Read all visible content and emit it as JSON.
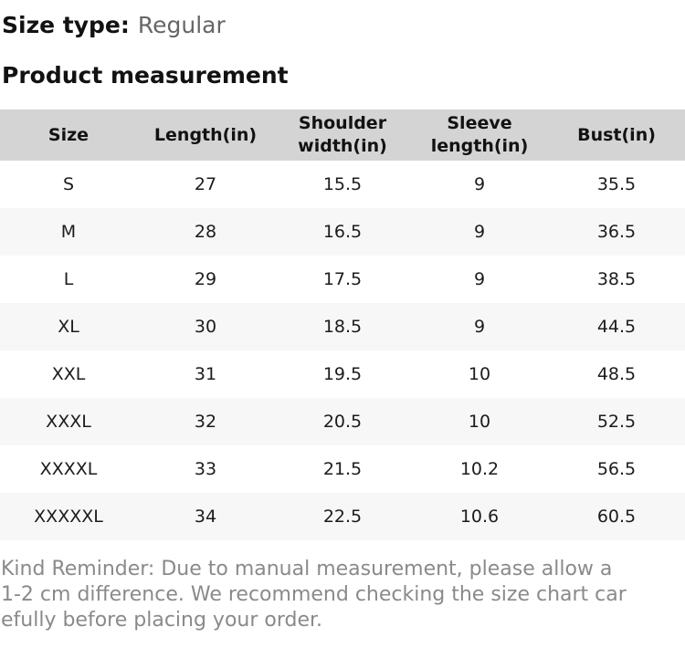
{
  "header": {
    "size_type_label": "Size type:",
    "size_type_value": "Regular",
    "section_title": "Product measurement"
  },
  "size_chart": {
    "columns": {
      "size": "Size",
      "length": "Length(in)",
      "shoulder": "Shoulder width(in)",
      "sleeve": "Sleeve length(in)",
      "bust": "Bust(in)"
    },
    "rows": [
      {
        "size": "S",
        "length": "27",
        "shoulder": "15.5",
        "sleeve": "9",
        "bust": "35.5"
      },
      {
        "size": "M",
        "length": "28",
        "shoulder": "16.5",
        "sleeve": "9",
        "bust": "36.5"
      },
      {
        "size": "L",
        "length": "29",
        "shoulder": "17.5",
        "sleeve": "9",
        "bust": "38.5"
      },
      {
        "size": "XL",
        "length": "30",
        "shoulder": "18.5",
        "sleeve": "9",
        "bust": "44.5"
      },
      {
        "size": "XXL",
        "length": "31",
        "shoulder": "19.5",
        "sleeve": "10",
        "bust": "48.5"
      },
      {
        "size": "XXXL",
        "length": "32",
        "shoulder": "20.5",
        "sleeve": "10",
        "bust": "52.5"
      },
      {
        "size": "XXXXL",
        "length": "33",
        "shoulder": "21.5",
        "sleeve": "10.2",
        "bust": "56.5"
      },
      {
        "size": "XXXXXL",
        "length": "34",
        "shoulder": "22.5",
        "sleeve": "10.6",
        "bust": "60.5"
      }
    ]
  },
  "reminder": {
    "lines": [
      "Kind Reminder: Due to manual measurement, please allow a",
      "1-2 cm difference. We recommend checking the size chart car",
      "efully before placing your order."
    ]
  },
  "colors": {
    "heading_text": "#121212",
    "size_type_value_text": "#666666",
    "table_header_bg": "#d4d4d4",
    "row_alt_bg": "#f7f7f7",
    "body_text": "#1c1c1c",
    "reminder_text": "#8a8a8a",
    "page_bg": "#ffffff"
  }
}
